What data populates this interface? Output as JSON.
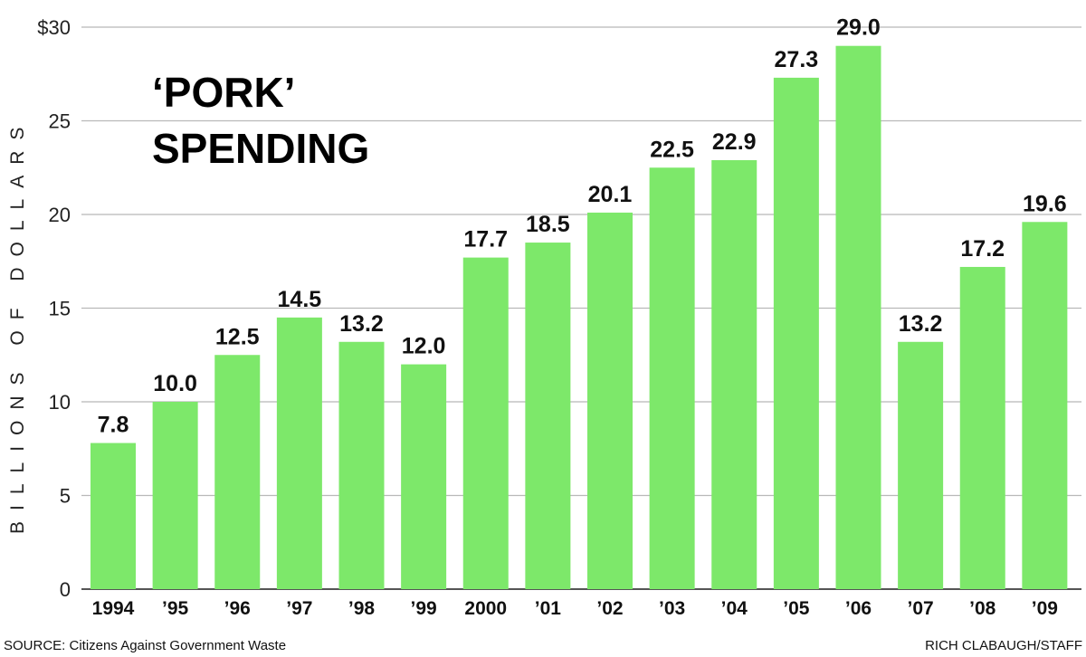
{
  "chart_data": {
    "type": "bar",
    "title_lines": [
      "‘PORK’",
      "SPENDING"
    ],
    "ylabel": "BILLIONS OF DOLLARS",
    "xlabel": "",
    "ylim": [
      0,
      30
    ],
    "yticks": [
      0,
      5,
      10,
      15,
      20,
      25,
      30
    ],
    "ytick_labels": [
      "0",
      "5",
      "10",
      "15",
      "20",
      "25",
      "$30"
    ],
    "grid": true,
    "categories": [
      "1994",
      "’95",
      "’96",
      "’97",
      "’98",
      "’99",
      "2000",
      "’01",
      "’02",
      "’03",
      "’04",
      "’05",
      "’06",
      "’07",
      "’08",
      "’09"
    ],
    "values": [
      7.8,
      10.0,
      12.5,
      14.5,
      13.2,
      12.0,
      17.7,
      18.5,
      20.1,
      22.5,
      22.9,
      27.3,
      29.0,
      13.2,
      17.2,
      19.6
    ],
    "data_labels": [
      "7.8",
      "10.0",
      "12.5",
      "14.5",
      "13.2",
      "12.0",
      "17.7",
      "18.5",
      "20.1",
      "22.5",
      "22.9",
      "27.3",
      "29.0",
      "13.2",
      "17.2",
      "19.6"
    ],
    "bar_color": "#7de86a",
    "source": "SOURCE: Citizens Against Government Waste",
    "credit": "RICH CLABAUGH/STAFF"
  }
}
